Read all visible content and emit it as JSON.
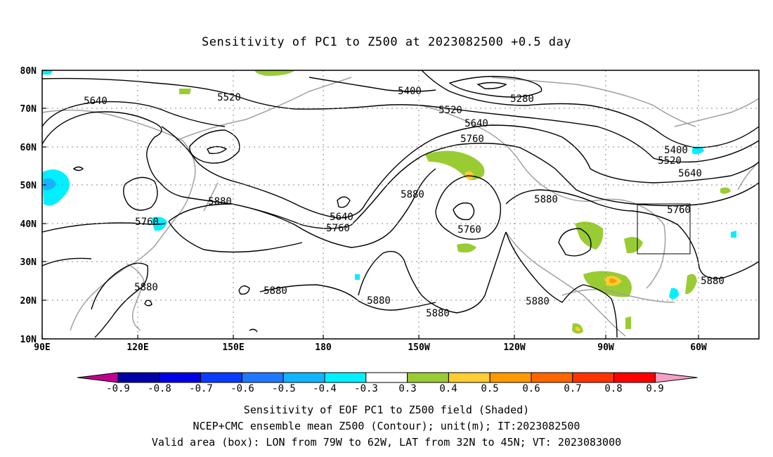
{
  "title": "Sensitivity of PC1 to Z500 at 2023082500 +0.5 day",
  "map": {
    "lat_ticks": [
      "80N",
      "70N",
      "60N",
      "50N",
      "40N",
      "30N",
      "20N",
      "10N"
    ],
    "lon_ticks": [
      "90E",
      "120E",
      "150E",
      "180",
      "150W",
      "120W",
      "90W",
      "60W"
    ],
    "contour_labels": [
      {
        "text": "5280"
      },
      {
        "text": "5400"
      },
      {
        "text": "5400"
      },
      {
        "text": "5520"
      },
      {
        "text": "5520"
      },
      {
        "text": "5520"
      },
      {
        "text": "5640"
      },
      {
        "text": "5640"
      },
      {
        "text": "5640"
      },
      {
        "text": "5640"
      },
      {
        "text": "5760"
      },
      {
        "text": "5760"
      },
      {
        "text": "5760"
      },
      {
        "text": "5760"
      },
      {
        "text": "5760"
      },
      {
        "text": "5880"
      },
      {
        "text": "5880"
      },
      {
        "text": "5880"
      },
      {
        "text": "5880"
      },
      {
        "text": "5880"
      },
      {
        "text": "5880"
      },
      {
        "text": "5880"
      },
      {
        "text": "5880"
      },
      {
        "text": "5880"
      }
    ],
    "valid_box": {
      "lon_from": "79W",
      "lon_to": "62W",
      "lat_from": "32N",
      "lat_to": "45N"
    }
  },
  "colorbar": {
    "labels": [
      "-0.9",
      "-0.8",
      "-0.7",
      "-0.6",
      "-0.5",
      "-0.4",
      "-0.3",
      "0.3",
      "0.4",
      "0.5",
      "0.6",
      "0.7",
      "0.8",
      "0.9"
    ],
    "colors": [
      "#c0008f",
      "#0000a8",
      "#0000e6",
      "#0a3cff",
      "#1e78ff",
      "#12b4ff",
      "#00f0ff",
      "#ffffff",
      "#99cc33",
      "#ffcc33",
      "#ff9900",
      "#ff6600",
      "#ff3300",
      "#ff0000",
      "#f4a0c8"
    ]
  },
  "captions": [
    "Sensitivity of EOF PC1 to Z500 field (Shaded)",
    "NCEP+CMC ensemble mean Z500 (Contour); unit(m); IT:2023082500",
    "Valid area (box): LON from 79W to 62W, LAT from 32N to 45N; VT: 2023083000"
  ]
}
